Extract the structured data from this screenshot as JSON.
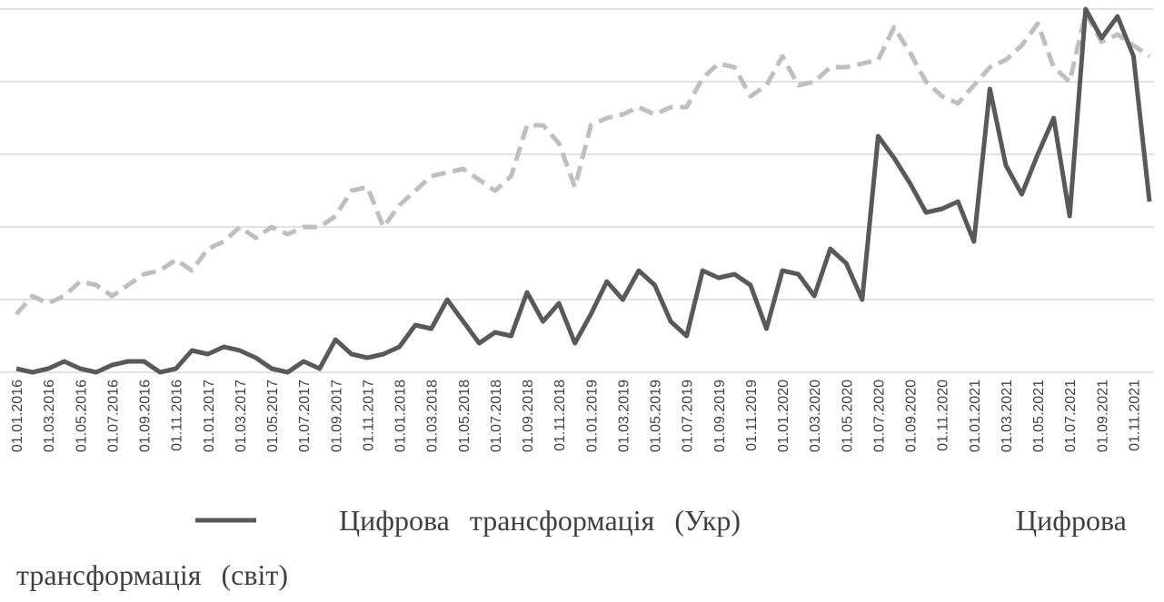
{
  "chart_data": {
    "type": "line",
    "categories": [
      "01.01.2016",
      null,
      "01.03.2016",
      null,
      "01.05.2016",
      null,
      "01.07.2016",
      null,
      "01.09.2016",
      null,
      "01.11.2016",
      null,
      "01.01.2017",
      null,
      "01.03.2017",
      null,
      "01.05.2017",
      null,
      "01.07.2017",
      null,
      "01.09.2017",
      null,
      "01.11.2017",
      null,
      "01.01.2018",
      null,
      "01.03.2018",
      null,
      "01.05.2018",
      null,
      "01.07.2018",
      null,
      "01.09.2018",
      null,
      "01.11.2018",
      null,
      "01.01.2019",
      null,
      "01.03.2019",
      null,
      "01.05.2019",
      null,
      "01.07.2019",
      null,
      "01.09.2019",
      null,
      "01.11.2019",
      null,
      "01.01.2020",
      null,
      "01.03.2020",
      null,
      "01.05.2020",
      null,
      "01.07.2020",
      null,
      "01.09.2020",
      null,
      "01.11.2020",
      null,
      "01.01.2021",
      null,
      "01.03.2021",
      null,
      "01.05.2021",
      null,
      "01.07.2021",
      null,
      "01.09.2021",
      null,
      "01.11.2021",
      null
    ],
    "series": [
      {
        "name": "Цифрова трансформація (Укр)",
        "color": "#595959",
        "dash": false,
        "values": [
          1,
          0,
          1,
          3,
          1,
          0,
          2,
          3,
          3,
          0,
          1,
          6,
          5,
          7,
          6,
          4,
          1,
          0,
          3,
          1,
          9,
          5,
          4,
          5,
          7,
          13,
          12,
          20,
          14,
          8,
          11,
          10,
          22,
          14,
          19,
          8,
          16,
          25,
          20,
          28,
          24,
          14,
          10,
          28,
          26,
          27,
          24,
          12,
          28,
          27,
          21,
          34,
          30,
          20,
          65,
          59,
          52,
          44,
          45,
          47,
          36,
          78,
          57,
          49,
          60,
          70,
          43,
          100,
          92,
          98,
          87,
          47
        ]
      },
      {
        "name": "Цифрова трансформація (світ)",
        "color": "#bfbfbf",
        "dash": true,
        "values": [
          16,
          21,
          19,
          21,
          25,
          24,
          21,
          24,
          27,
          28,
          31,
          28,
          34,
          36,
          40,
          37,
          40,
          38,
          40,
          40,
          43,
          50,
          51,
          40,
          46,
          50,
          54,
          55,
          56,
          53,
          50,
          54,
          68,
          68,
          63,
          51,
          68,
          70,
          71,
          73,
          71,
          73,
          73,
          81,
          85,
          84,
          76,
          79,
          87,
          79,
          80,
          84,
          84,
          85,
          86,
          95,
          88,
          80,
          76,
          74,
          79,
          84,
          86,
          90,
          96,
          84,
          80,
          99,
          91,
          93,
          90,
          87
        ]
      }
    ],
    "ylim": [
      0,
      100
    ],
    "grid_lines": [
      0,
      20,
      40,
      60,
      80,
      100
    ]
  }
}
